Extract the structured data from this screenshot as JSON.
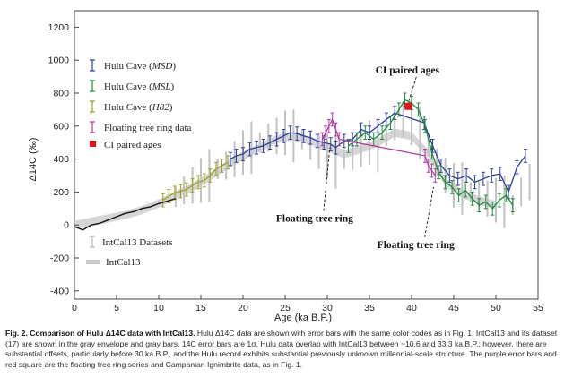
{
  "chart_data": {
    "type": "scatter",
    "title": "",
    "xlabel": "Age (ka B.P.)",
    "ylabel": "Δ14C (‰)",
    "xlim": [
      0,
      55
    ],
    "ylim": [
      -450,
      1300
    ],
    "xticks": [
      0,
      5,
      10,
      15,
      20,
      25,
      30,
      35,
      40,
      45,
      50,
      55
    ],
    "yticks": [
      -400,
      -200,
      0,
      200,
      400,
      600,
      800,
      1000,
      1200
    ],
    "legend_placement": "top-left",
    "legend2_placement": "bottom-left",
    "series": [
      {
        "name": "Hulu Cave",
        "label_suffix": "MSD",
        "color": "#2c3e9a",
        "style": "errorbar",
        "x": [
          18.5,
          19.2,
          20.0,
          20.8,
          21.6,
          22.4,
          23.2,
          24.0,
          24.8,
          25.6,
          26.4,
          27.2,
          28.0,
          28.8,
          29.6,
          30.4,
          31.0,
          32.0,
          33.0,
          34.0,
          35.0,
          36.0,
          37.0,
          38.0,
          41.5,
          42.5,
          43.5,
          44.5,
          45.5,
          46.5,
          47.5,
          48.5,
          49.5,
          50.5,
          51.5,
          52.5,
          53.5
        ],
        "y": [
          400,
          420,
          430,
          460,
          470,
          480,
          500,
          520,
          540,
          560,
          555,
          540,
          530,
          510,
          500,
          490,
          470,
          510,
          520,
          580,
          560,
          600,
          640,
          680,
          620,
          480,
          360,
          300,
          280,
          300,
          260,
          280,
          300,
          310,
          200,
          350,
          420
        ]
      },
      {
        "name": "Hulu Cave",
        "label_suffix": "MSL",
        "color": "#1e8a3a",
        "style": "errorbar",
        "x": [
          32.5,
          33.5,
          34.5,
          35.5,
          36.5,
          37.5,
          38.5,
          39.2,
          40.0,
          40.8,
          41.6,
          42.4,
          43.2,
          44.0,
          44.8,
          45.6,
          46.4,
          47.2,
          48.0,
          48.8,
          49.6,
          50.4,
          51.2,
          52.0
        ],
        "y": [
          480,
          520,
          560,
          520,
          560,
          620,
          700,
          760,
          740,
          700,
          600,
          440,
          320,
          260,
          230,
          180,
          210,
          160,
          120,
          140,
          100,
          150,
          180,
          120
        ]
      },
      {
        "name": "Hulu Cave",
        "label_suffix": "H82",
        "color": "#a0a020",
        "style": "errorbar",
        "x": [
          10.5,
          11.2,
          11.9,
          12.6,
          13.3,
          14.0,
          14.7,
          15.4,
          16.1,
          16.8,
          17.5,
          18.2
        ],
        "y": [
          150,
          175,
          195,
          205,
          215,
          240,
          260,
          270,
          300,
          340,
          360,
          380
        ]
      },
      {
        "name": "Floating tree ring data",
        "color": "#b03aa0",
        "style": "errorbar",
        "x": [
          29.4,
          29.8,
          30.2,
          30.6,
          31.0,
          31.4,
          41.6,
          42.0,
          42.4,
          42.8
        ],
        "y": [
          520,
          560,
          600,
          640,
          580,
          520,
          420,
          360,
          330,
          300
        ]
      },
      {
        "name": "CI paired ages",
        "color": "#e8101a",
        "style": "square",
        "x": [
          39.6
        ],
        "y": [
          720
        ]
      },
      {
        "name": "IntCal13 Datasets",
        "color": "#c2c2c2",
        "style": "errorbar-gray",
        "x": [
          12,
          13,
          14,
          15,
          16,
          17,
          18,
          19,
          20,
          21,
          22,
          23,
          24,
          25,
          26,
          27,
          28,
          29,
          30,
          31,
          32,
          33,
          34,
          35,
          36,
          37,
          38,
          39,
          40,
          41,
          42,
          43,
          44,
          45,
          46,
          47,
          48,
          49,
          50,
          51,
          52,
          53,
          54
        ],
        "y": [
          170,
          210,
          240,
          270,
          300,
          340,
          360,
          400,
          440,
          470,
          500,
          530,
          540,
          560,
          540,
          520,
          480,
          450,
          420,
          380,
          400,
          420,
          460,
          500,
          480,
          540,
          600,
          640,
          620,
          560,
          480,
          380,
          300,
          240,
          220,
          200,
          180,
          160,
          150,
          140,
          120,
          200,
          260
        ]
      },
      {
        "name": "IntCal13",
        "color": "#c8c8c8",
        "style": "envelope",
        "x": [
          0,
          2,
          4,
          6,
          8,
          10,
          12,
          14,
          16,
          18,
          20,
          22,
          24,
          26,
          28,
          30,
          32,
          34,
          36,
          38,
          40,
          42,
          44,
          46,
          48,
          50
        ],
        "y": [
          0,
          20,
          40,
          60,
          90,
          130,
          180,
          230,
          290,
          360,
          420,
          470,
          520,
          540,
          510,
          470,
          430,
          460,
          500,
          560,
          540,
          430,
          260,
          190,
          150,
          120
        ]
      },
      {
        "name": "Holocene record",
        "color": "#111111",
        "style": "line",
        "x": [
          0,
          1,
          2,
          3,
          4,
          5,
          6,
          7,
          8,
          9,
          10,
          11,
          12
        ],
        "y": [
          -10,
          -30,
          0,
          10,
          30,
          50,
          70,
          80,
          100,
          110,
          130,
          145,
          160
        ]
      }
    ],
    "annotations": [
      {
        "text": "CI paired ages",
        "x": 39.5,
        "y": 920,
        "arrow_to": [
          39.6,
          740
        ]
      },
      {
        "text": "Floating tree ring",
        "x": 28.5,
        "y": 20,
        "arrow_to": [
          30.3,
          470
        ]
      },
      {
        "text": "Floating tree ring",
        "x": 40.5,
        "y": -140,
        "arrow_to": [
          42.6,
          230
        ]
      }
    ]
  },
  "legend": {
    "hulu_prefix": "Hulu Cave (",
    "suffix": ")",
    "msd": "MSD",
    "msl": "MSL",
    "h82": "H82",
    "floating": "Floating tree ring data",
    "ci": "CI paired ages",
    "intcal_datasets": "IntCal13 Datasets",
    "intcal": "IntCal13"
  },
  "caption": {
    "title": "Fig. 2. Comparison of Hulu Δ14C data with IntCal13.",
    "body": " Hulu Δ14C data are shown with error bars with the same color codes as in Fig. 1. IntCal13 and its dataset (17) are shown in the gray envelope and gray bars. 14C error bars are 1σ. Hulu data overlap with IntCal13 between ~10.6 and 33.3 ka B.P.; however, there are substantial offsets, particularly before 30 ka B.P., and the Hulu record exhibits substantial previously unknown millennial-scale structure. The purple error bars and red square are the floating tree ring series and Campanian Ignimbrite data, as in Fig. 1."
  }
}
